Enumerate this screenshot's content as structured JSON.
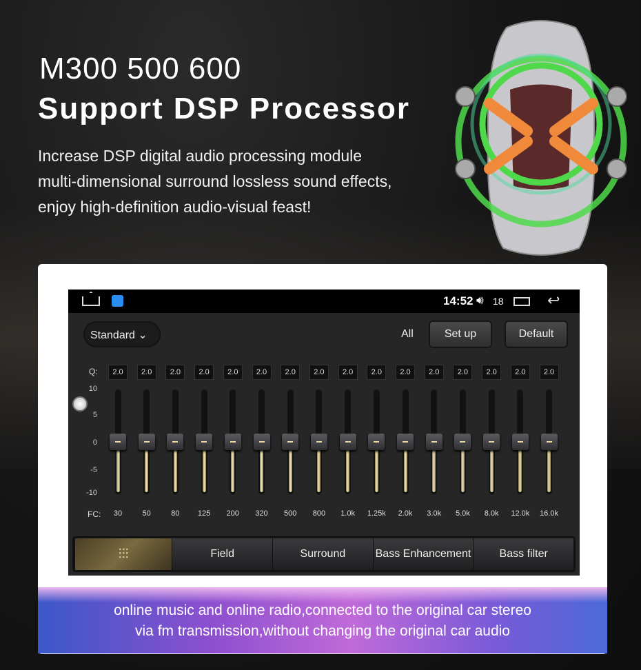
{
  "headline": {
    "line1": "M300 500 600",
    "line2": "Support DSP Processor"
  },
  "description": "Increase DSP digital audio processing module multi-dimensional surround lossless sound effects, enjoy high-definition audio-visual feast!",
  "status_bar": {
    "time": "14:52",
    "volume": "18",
    "icons": [
      "home-icon",
      "app-icon",
      "volume-icon",
      "recent-apps-icon",
      "back-icon"
    ]
  },
  "eq": {
    "preset": "Standard",
    "all_label": "All",
    "setup_label": "Set up",
    "default_label": "Default",
    "q_label": "Q:",
    "fc_label": "FC:",
    "axis_ticks": [
      "10",
      "5",
      "0",
      "-5",
      "-10"
    ],
    "bands": [
      {
        "fc": "30",
        "q": "2.0",
        "gain": 0
      },
      {
        "fc": "50",
        "q": "2.0",
        "gain": 0
      },
      {
        "fc": "80",
        "q": "2.0",
        "gain": 0
      },
      {
        "fc": "125",
        "q": "2.0",
        "gain": 0
      },
      {
        "fc": "200",
        "q": "2.0",
        "gain": 0
      },
      {
        "fc": "320",
        "q": "2.0",
        "gain": 0
      },
      {
        "fc": "500",
        "q": "2.0",
        "gain": 0
      },
      {
        "fc": "800",
        "q": "2.0",
        "gain": 0
      },
      {
        "fc": "1.0k",
        "q": "2.0",
        "gain": 0
      },
      {
        "fc": "1.25k",
        "q": "2.0",
        "gain": 0
      },
      {
        "fc": "2.0k",
        "q": "2.0",
        "gain": 0
      },
      {
        "fc": "3.0k",
        "q": "2.0",
        "gain": 0
      },
      {
        "fc": "5.0k",
        "q": "2.0",
        "gain": 0
      },
      {
        "fc": "8.0k",
        "q": "2.0",
        "gain": 0
      },
      {
        "fc": "12.0k",
        "q": "2.0",
        "gain": 0
      },
      {
        "fc": "16.0k",
        "q": "2.0",
        "gain": 0
      }
    ],
    "gain_range": [
      -10,
      10
    ]
  },
  "tabs": [
    {
      "label": "",
      "icon": "equalizer-icon",
      "active": true
    },
    {
      "label": "Field"
    },
    {
      "label": "Surround"
    },
    {
      "label": "Bass Enhancement"
    },
    {
      "label": "Bass filter"
    }
  ],
  "banner": {
    "line1": "online music and online radio,connected to the original car stereo",
    "line2": "via fm transmission,without changing the original car audio"
  },
  "colors": {
    "ring": "#4fd94a",
    "arrow": "#f08a3a",
    "slider_fill": "#f6e8bc",
    "banner_start": "#3b58c9",
    "banner_mid": "#c06ad8"
  }
}
